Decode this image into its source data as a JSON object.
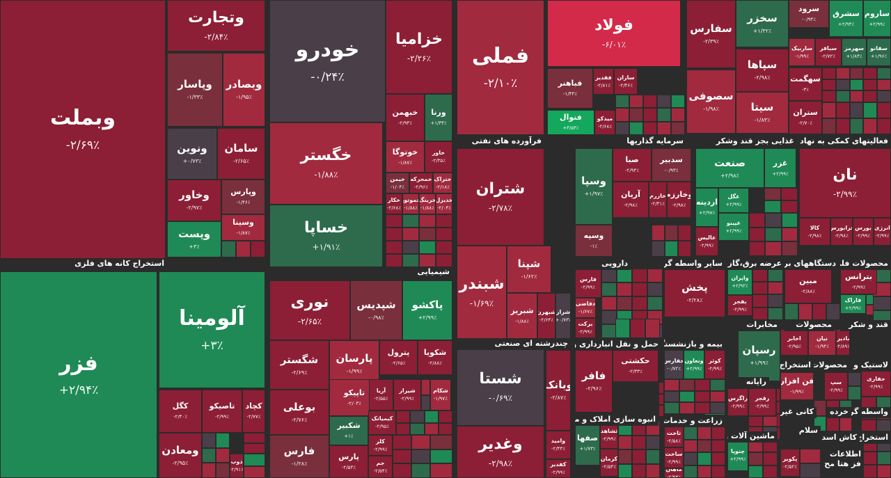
{
  "colors": {
    "background": "#2b2b2b",
    "down_strong": "#8c1f35",
    "down_mid": "#a12a3f",
    "down_light": "#7a2f3c",
    "neutral": "#4a3f48",
    "up_light": "#2d6b4c",
    "up_strong": "#1f8a55",
    "up_bright": "#14a85c",
    "down_bright": "#d42a4a"
  },
  "chart_data": {
    "type": "treemap",
    "title": "",
    "sectors": [
      {
        "id": "metals",
        "label": "استخراج کانه های فلزی"
      },
      {
        "id": "basic_metals",
        "label": "فلزات اساسی"
      },
      {
        "id": "chemical",
        "label": "شیمیایی"
      },
      {
        "id": "petroleum",
        "label": "فرآورده های نفتی"
      },
      {
        "id": "investment",
        "label": "سرمایه گذاریها"
      },
      {
        "id": "sugar",
        "label": "غذایی بجز قند وشکر"
      },
      {
        "id": "aux",
        "label": "فعالیتهای کمکی به نهاد های"
      },
      {
        "id": "multi",
        "label": "چندرشته ای صنعتی"
      },
      {
        "id": "pharma",
        "label": "دارویی"
      },
      {
        "id": "brokers",
        "label": "سایر واسطه گریهای"
      },
      {
        "id": "utility",
        "label": "عرضه برق،گاز،بخار"
      },
      {
        "id": "electric",
        "label": "دستگاههای برقی"
      },
      {
        "id": "metalprod",
        "label": "محصولات فلزی"
      },
      {
        "id": "transport",
        "label": "حمل و نقل انبارداری و"
      },
      {
        "id": "insurance",
        "label": "بیمه و بازنشستگی"
      },
      {
        "id": "telecom",
        "label": "مخابرات"
      },
      {
        "id": "products",
        "label": "محصولات"
      },
      {
        "id": "food",
        "label": "قند و شکر"
      },
      {
        "id": "realestate",
        "label": "انبوه سازی املاک و مستغلات"
      },
      {
        "id": "farming",
        "label": "زراعت و خدمات"
      },
      {
        "id": "computer",
        "label": "رایانه"
      },
      {
        "id": "extract",
        "label": "استخراج"
      },
      {
        "id": "products2",
        "label": "محصولات"
      },
      {
        "id": "rubber",
        "label": "لاستیک و"
      },
      {
        "id": "nonmetal",
        "label": "کانی غیر فلزی"
      },
      {
        "id": "retail",
        "label": "خرده"
      },
      {
        "id": "mediation",
        "label": "واسطه گریهای"
      },
      {
        "id": "machinery",
        "label": "ماشین آلات و"
      },
      {
        "id": "salam",
        "label": "سلام"
      },
      {
        "id": "ext_mahsol",
        "label": "استخراج محصولا"
      },
      {
        "id": "kashi",
        "label": "کاش اسد منسو"
      },
      {
        "id": "ettelaat",
        "label": "اطلاعات"
      },
      {
        "id": "fazhata",
        "label": "فز هتا مح"
      }
    ],
    "tiles": [
      {
        "symbol": "وبملت",
        "change": "-۲/۶۹٪"
      },
      {
        "symbol": "وتجارت",
        "change": "-۲/۸۴٪"
      },
      {
        "symbol": "وپاسار",
        "change": "-۱/۳۳٪"
      },
      {
        "symbol": "وبصادر",
        "change": "-۱/۹۵٪"
      },
      {
        "symbol": "ونوین",
        "change": "+۰/۷۳٪"
      },
      {
        "symbol": "سامان",
        "change": "-۲/۶۵٪"
      },
      {
        "symbol": "وخاور",
        "change": "-۲/۹۷٪"
      },
      {
        "symbol": "وپارس",
        "change": "-۱/۴۶٪"
      },
      {
        "symbol": "وپست",
        "change": "+۳٪"
      },
      {
        "symbol": "وسینا",
        "change": "-۱/۸۷٪"
      },
      {
        "symbol": "خودرو",
        "change": "-۰/۲۴٪"
      },
      {
        "symbol": "خگستر",
        "change": "-۱/۸۸٪"
      },
      {
        "symbol": "خساپا",
        "change": "+۱/۹۱٪"
      },
      {
        "symbol": "خزامیا",
        "change": "-۲/۲۶٪"
      },
      {
        "symbol": "خبهمن",
        "change": "-۲/۹۴٪"
      },
      {
        "symbol": "ورنا",
        "change": "+۱/۳۴٪"
      },
      {
        "symbol": "خوتوگا",
        "change": "-۱/۸۷٪"
      },
      {
        "symbol": "خاور",
        "change": "-۲/۳۵٪"
      },
      {
        "symbol": "خیمن",
        "change": "-۱/۰۴٪"
      },
      {
        "symbol": "خمحرکه",
        "change": "-۲/۹۶٪"
      },
      {
        "symbol": "ختراک",
        "change": "-۲/۱۸٪"
      },
      {
        "symbol": "خکار",
        "change": "-۲/۶۸٪"
      },
      {
        "symbol": "خموتور",
        "change": "-۱/۸۸٪"
      },
      {
        "symbol": "خرینگ",
        "change": "-۱/۸۸٪"
      },
      {
        "symbol": "خدیزل",
        "change": "-۲/۰۴٪"
      },
      {
        "symbol": "فملی",
        "change": "-۲/۱۰٪"
      },
      {
        "symbol": "فولاد",
        "change": "-۶/۰۱٪"
      },
      {
        "symbol": "فباهنر",
        "change": "-۱/۴۴٪"
      },
      {
        "symbol": "ففدیر",
        "change": "-۲/۸۱٪"
      },
      {
        "symbol": "سازان",
        "change": "-۲/۴۶٪"
      },
      {
        "symbol": "فنوال",
        "change": "+۴/۵۴٪"
      },
      {
        "symbol": "میدکو",
        "change": "-۲/۶۸٪"
      },
      {
        "symbol": "سفارس",
        "change": "-۲/۳۹٪"
      },
      {
        "symbol": "سخزر",
        "change": "+۱/۳۲٪"
      },
      {
        "symbol": "سرود",
        "change": "-۰/۹۴٪"
      },
      {
        "symbol": "سشرق",
        "change": "+۲/۹۴٪"
      },
      {
        "symbol": "ساروم",
        "change": "+۲/۹۹٪"
      },
      {
        "symbol": "ساربیک",
        "change": "-۱/۹۹٪"
      },
      {
        "symbol": "سباقر",
        "change": "-۲/۷۲٪"
      },
      {
        "symbol": "سهرمز",
        "change": "+۱/۸۴٪"
      },
      {
        "symbol": "سفانو",
        "change": "+۱/۹۶٪"
      },
      {
        "symbol": "سصوفی",
        "change": "-۱/۹۸٪"
      },
      {
        "symbol": "سپاها",
        "change": "-۲/۹۸٪"
      },
      {
        "symbol": "سهگمت",
        "change": "-۳٪"
      },
      {
        "symbol": "سیتا",
        "change": "-۱/۸۳٪"
      },
      {
        "symbol": "ستران",
        "change": "-۲/۷۰٪"
      },
      {
        "symbol": "فزر",
        "change": "+۲/۹۴٪"
      },
      {
        "symbol": "آلومینا",
        "change": "+۳٪"
      },
      {
        "symbol": "کگل",
        "change": "-۲/۳۰٪"
      },
      {
        "symbol": "تاصیکو",
        "change": "-۲/۹۹٪"
      },
      {
        "symbol": "کچاد",
        "change": "-۲/۷۷٪"
      },
      {
        "symbol": "ومعادن",
        "change": "-۲/۹۵٪"
      },
      {
        "symbol": "ذوب",
        "change": "-۲/۹۱٪"
      },
      {
        "symbol": "نوری",
        "change": "-۲/۶۵٪"
      },
      {
        "symbol": "شپدیس",
        "change": "-۰/۹۸٪"
      },
      {
        "symbol": "پاکشو",
        "change": "+۲/۹۹٪"
      },
      {
        "symbol": "شگستر",
        "change": "-۲/۶۹٪"
      },
      {
        "symbol": "پارسان",
        "change": "-۱/۹۹٪"
      },
      {
        "symbol": "پترول",
        "change": "-۲/۶۵٪"
      },
      {
        "symbol": "شکویا",
        "change": "-۲/۸۸٪"
      },
      {
        "symbol": "بوعلی",
        "change": "-۲/۷۶٪"
      },
      {
        "symbol": "تاپیکو",
        "change": "-۲/۰۳٪"
      },
      {
        "symbol": "آریا",
        "change": "-۲/۵۵٪"
      },
      {
        "symbol": "شیراز",
        "change": "-۲/۹۹٪"
      },
      {
        "symbol": "شکام",
        "change": "-۱/۹۷٪"
      },
      {
        "symbol": "شکبیر",
        "change": "+۱٪"
      },
      {
        "symbol": "کیمیاتک",
        "change": "-۲/۹۵٪"
      },
      {
        "symbol": "فارس",
        "change": "-۱/۲۸٪"
      },
      {
        "symbol": "کلر",
        "change": "-۲/۹۹٪"
      },
      {
        "symbol": "پارس",
        "change": "-۲/۵۳٪"
      },
      {
        "symbol": "جم",
        "change": "-۲/۵۴٪"
      },
      {
        "symbol": "شتران",
        "change": "-۲/۷۸٪"
      },
      {
        "symbol": "شبندر",
        "change": "-۱/۶۹٪"
      },
      {
        "symbol": "شپنا",
        "change": "-۱/۶۲٪"
      },
      {
        "symbol": "شبریز",
        "change": "-۱/۸۸٪"
      },
      {
        "symbol": "شبهرن",
        "change": "-۲/۶۴٪"
      },
      {
        "symbol": "شراز",
        "change": "+۰/۷۳٪"
      },
      {
        "symbol": "شستا",
        "change": "-۰/۶۹٪"
      },
      {
        "symbol": "وغدیر",
        "change": "-۲/۹۸٪"
      },
      {
        "symbol": "وبانک",
        "change": "-۲/۸۷٪"
      },
      {
        "symbol": "وامید",
        "change": "-۲/۴۴٪"
      },
      {
        "symbol": "کفدیر",
        "change": "-۲/۹۹٪"
      },
      {
        "symbol": "وسپا",
        "change": "+۱/۹۷٪"
      },
      {
        "symbol": "وسپه",
        "change": "-۱٪"
      },
      {
        "symbol": "صبا",
        "change": "-۲/۹۴٪"
      },
      {
        "symbol": "سدبیر",
        "change": "-۰/۹۳٪"
      },
      {
        "symbol": "آریان",
        "change": "-۲/۹۸٪"
      },
      {
        "symbol": "خازرم",
        "change": "-۲/۴۱٪"
      },
      {
        "symbol": "وخارزم",
        "change": "-۲/۹۸٪"
      },
      {
        "symbol": "صنعت",
        "change": "+۲/۹۸٪"
      },
      {
        "symbol": "غزر",
        "change": "+۲/۹۹٪"
      },
      {
        "symbol": "اردینه",
        "change": "+۲/۹۷٪"
      },
      {
        "symbol": "غگل",
        "change": "+۲/۹۹٪"
      },
      {
        "symbol": "غپینو",
        "change": "+۲/۹۹٪"
      },
      {
        "symbol": "عالیس",
        "change": "-۲/۹۹٪"
      },
      {
        "symbol": "نان",
        "change": "-۲/۹۹٪"
      },
      {
        "symbol": "کالا",
        "change": "-۲/۹۸٪"
      },
      {
        "symbol": "فرابورس",
        "change": "-۲/۹۸٪"
      },
      {
        "symbol": "بورس",
        "change": "-۲/۹۹٪"
      },
      {
        "symbol": "انرژی",
        "change": "-۲/۹۹٪"
      },
      {
        "symbol": "فارس",
        "change": "-۲/۹۹٪"
      },
      {
        "symbol": "دفاضی",
        "change": "-۱/۶۷٪"
      },
      {
        "symbol": "برکت",
        "change": "-۲/۹۹٪"
      },
      {
        "symbol": "پخش",
        "change": "-۲/۲۸٪"
      },
      {
        "symbol": "واپران",
        "change": "+۲/۹۲٪"
      },
      {
        "symbol": "بفجر",
        "change": "-۲/۹۹٪"
      },
      {
        "symbol": "مبین",
        "change": "-۲/۸۸٪"
      },
      {
        "symbol": "بترانس",
        "change": "-۲/۹۹٪"
      },
      {
        "symbol": "فاراک",
        "change": "+۲/۹۹٪"
      },
      {
        "symbol": "فافر",
        "change": "-۲/۹۶٪"
      },
      {
        "symbol": "حکشتی",
        "change": "-۲/۳۳٪"
      },
      {
        "symbol": "حفارس",
        "change": "-۰/۷۲٪"
      },
      {
        "symbol": "ونعاون",
        "change": "+۲/۹۹٪"
      },
      {
        "symbol": "کوثر",
        "change": "-۲/۹۹٪"
      },
      {
        "symbol": "رسپان",
        "change": "+۱/۹۹٪"
      },
      {
        "symbol": "اخابر",
        "change": "-۲/۹۵٪"
      },
      {
        "symbol": "نیان",
        "change": "-۱/۹۴٪"
      },
      {
        "symbol": "مادیرا",
        "change": "-۲/۸۹٪"
      },
      {
        "symbol": "صفها",
        "change": "+۱/۷۳٪"
      },
      {
        "symbol": "ثشاهد",
        "change": "-۲/۹۹٪"
      },
      {
        "symbol": "کرمان",
        "change": "-۲/۵۴٪"
      },
      {
        "symbol": "ثاخت",
        "change": "-۲/۵۸٪"
      },
      {
        "symbol": "ساخت",
        "change": "-۲/۹۹٪"
      },
      {
        "symbol": "ماهان",
        "change": "-۲/۹۳٪"
      },
      {
        "symbol": "زاگرس",
        "change": "-۲/۹۹٪"
      },
      {
        "symbol": "زقجر",
        "change": "-۲/۹۹٪"
      },
      {
        "symbol": "فن افزار",
        "change": "-۱/۹۹٪"
      },
      {
        "symbol": "سپ",
        "change": "-۲/۹۹٪"
      },
      {
        "symbol": "حفاری",
        "change": "-۲/۹۹٪"
      },
      {
        "symbol": "چنوپا",
        "change": "+۲/۹۹٪"
      },
      {
        "symbol": "پکویر",
        "change": "-۲/۵۲٪"
      },
      {
        "symbol": "بمشان",
        "change": "+۲/۹۹٪"
      },
      {
        "symbol": "لسرما",
        "change": "-۲/۹۹٪"
      }
    ]
  }
}
